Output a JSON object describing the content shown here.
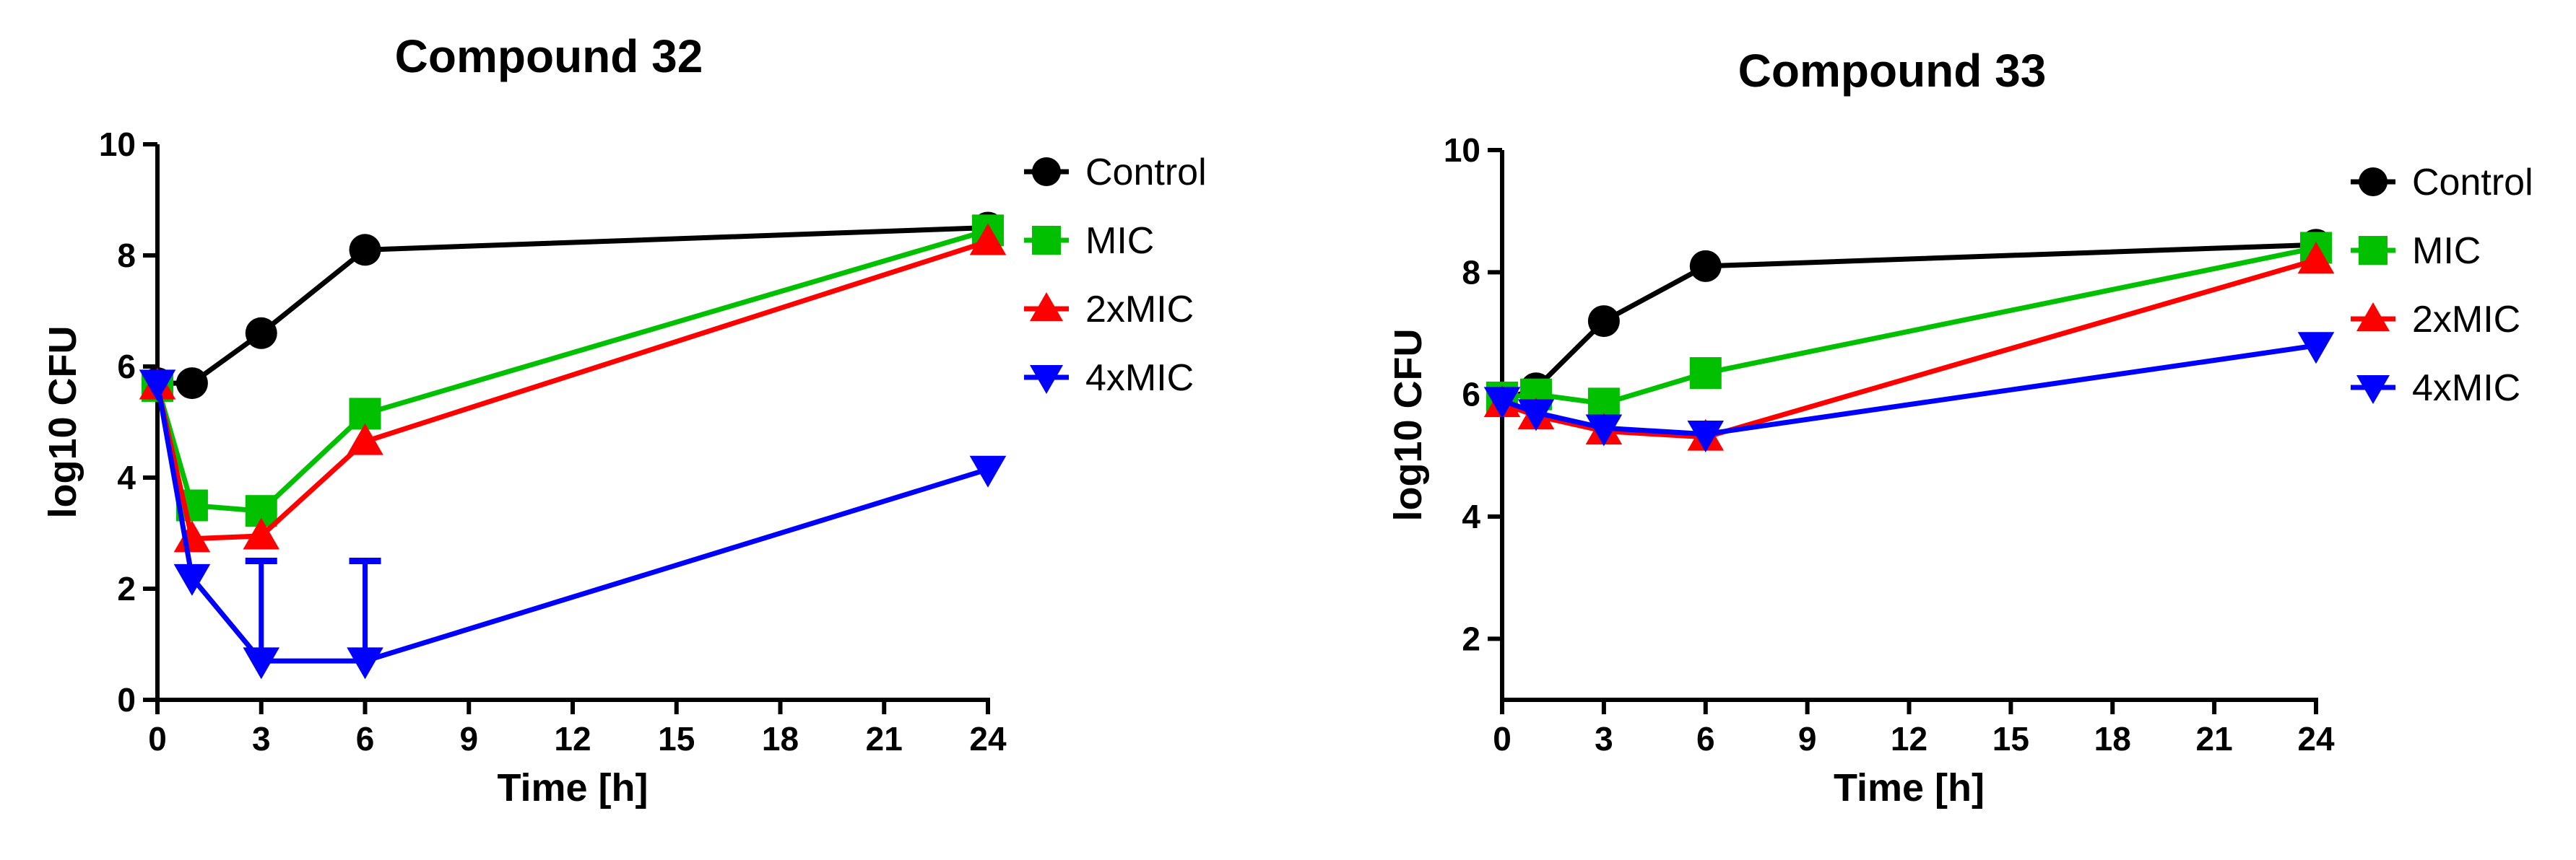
{
  "chart_data": [
    {
      "type": "line",
      "title": "Compound 32",
      "xlabel": "Time [h]",
      "ylabel": "log10 CFU",
      "xlim": [
        0,
        24
      ],
      "ylim": [
        0,
        10
      ],
      "xticks": [
        0,
        3,
        6,
        9,
        12,
        15,
        18,
        21,
        24
      ],
      "yticks": [
        0,
        2,
        4,
        6,
        8,
        10
      ],
      "x": [
        0,
        1,
        3,
        6,
        24
      ],
      "legend_position": "right",
      "series": [
        {
          "name": "Control",
          "color": "#000000",
          "marker": "circle",
          "values": [
            5.7,
            5.7,
            6.6,
            8.1,
            8.5
          ]
        },
        {
          "name": "MIC",
          "color": "#00c000",
          "marker": "square",
          "values": [
            5.65,
            3.5,
            3.4,
            5.15,
            8.45
          ]
        },
        {
          "name": "2xMIC",
          "color": "#ff0000",
          "marker": "triangle-up",
          "values": [
            5.65,
            2.9,
            2.95,
            4.65,
            8.25
          ]
        },
        {
          "name": "4xMIC",
          "color": "#0000ff",
          "marker": "triangle-down",
          "values": [
            5.7,
            2.2,
            0.7,
            0.7,
            4.15
          ],
          "error_upper": [
            0,
            0,
            1.8,
            1.8,
            0
          ]
        }
      ]
    },
    {
      "type": "line",
      "title": "Compound 33",
      "xlabel": "Time [h]",
      "ylabel": "log10 CFU",
      "xlim": [
        0,
        24
      ],
      "ylim": [
        1,
        10
      ],
      "xticks": [
        0,
        3,
        6,
        9,
        12,
        15,
        18,
        21,
        24
      ],
      "yticks": [
        2,
        4,
        6,
        8,
        10
      ],
      "x": [
        0,
        1,
        3,
        6,
        24
      ],
      "legend_position": "right",
      "series": [
        {
          "name": "Control",
          "color": "#000000",
          "marker": "circle",
          "values": [
            5.9,
            6.1,
            7.2,
            8.1,
            8.45
          ]
        },
        {
          "name": "MIC",
          "color": "#00c000",
          "marker": "square",
          "values": [
            5.95,
            6.0,
            5.85,
            6.35,
            8.4
          ]
        },
        {
          "name": "2xMIC",
          "color": "#ff0000",
          "marker": "triangle-up",
          "values": [
            5.85,
            5.65,
            5.4,
            5.3,
            8.2
          ]
        },
        {
          "name": "4xMIC",
          "color": "#0000ff",
          "marker": "triangle-down",
          "values": [
            5.9,
            5.7,
            5.45,
            5.35,
            6.8
          ]
        }
      ]
    }
  ]
}
